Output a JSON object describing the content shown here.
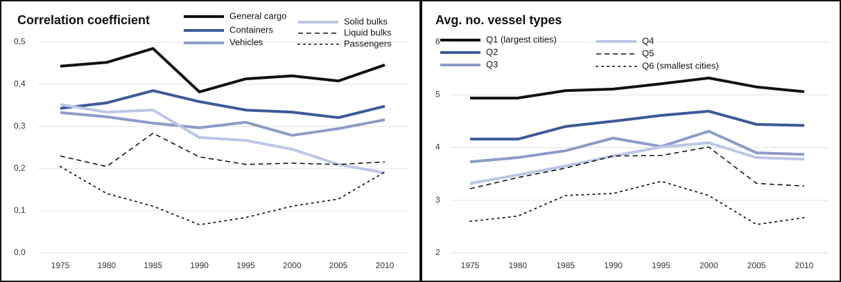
{
  "chart_data": [
    {
      "type": "line",
      "title": "Correlation coefficient",
      "x": [
        1975,
        1980,
        1985,
        1990,
        1995,
        2000,
        2005,
        2010
      ],
      "xlim": [
        1975,
        2010
      ],
      "xticks": [
        1975,
        1980,
        1985,
        1990,
        1995,
        2000,
        2005,
        2010
      ],
      "ylim": [
        0,
        0.5
      ],
      "yticks": [
        {
          "value": 0,
          "label": "0,0"
        },
        {
          "value": 0.1,
          "label": "0,1"
        },
        {
          "value": 0.2,
          "label": "0,2"
        },
        {
          "value": 0.3,
          "label": "0,3"
        },
        {
          "value": 0.4,
          "label": "0,4"
        },
        {
          "value": 0.5,
          "label": "0,5"
        }
      ],
      "grid": true,
      "series": [
        {
          "name": "General cargo",
          "color": "#111111",
          "style": "solid",
          "values": [
            0.443,
            0.452,
            0.485,
            0.382,
            0.413,
            0.42,
            0.408,
            0.446
          ]
        },
        {
          "name": "Containers",
          "color": "#3d5a99",
          "style": "solid",
          "values": [
            0.343,
            0.356,
            0.385,
            0.359,
            0.339,
            0.334,
            0.321,
            0.348
          ]
        },
        {
          "name": "Vehicles",
          "color": "#8c9bc8",
          "style": "solid",
          "values": [
            0.333,
            0.323,
            0.308,
            0.297,
            0.31,
            0.279,
            0.295,
            0.316
          ]
        },
        {
          "name": "Solid bulks",
          "color": "#bcc6e6",
          "style": "solid",
          "values": [
            0.352,
            0.334,
            0.339,
            0.274,
            0.267,
            0.246,
            0.21,
            0.19
          ]
        },
        {
          "name": "Liquid bulks",
          "color": "#111111",
          "style": "dashed",
          "values": [
            0.23,
            0.205,
            0.284,
            0.228,
            0.21,
            0.213,
            0.21,
            0.216
          ]
        },
        {
          "name": "Passengers",
          "color": "#111111",
          "style": "dotted",
          "values": [
            0.205,
            0.141,
            0.111,
            0.067,
            0.084,
            0.111,
            0.128,
            0.192
          ]
        }
      ]
    },
    {
      "type": "line",
      "title": "Avg. no. vessel types",
      "x": [
        1975,
        1980,
        1985,
        1990,
        1995,
        2000,
        2005,
        2010
      ],
      "xlim": [
        1975,
        2010
      ],
      "xticks": [
        1975,
        1980,
        1985,
        1990,
        1995,
        2000,
        2005,
        2010
      ],
      "ylim": [
        2,
        6
      ],
      "yticks": [
        2,
        3,
        4,
        5,
        6
      ],
      "grid": true,
      "series": [
        {
          "name": "Q1 (largest cities)",
          "color": "#111111",
          "style": "solid",
          "values": [
            4.94,
            4.94,
            5.08,
            5.11,
            5.21,
            5.32,
            5.15,
            5.06
          ]
        },
        {
          "name": "Q2",
          "color": "#3d5a99",
          "style": "solid",
          "values": [
            4.16,
            4.16,
            4.4,
            4.5,
            4.61,
            4.69,
            4.44,
            4.42
          ]
        },
        {
          "name": "Q3",
          "color": "#8c9bc8",
          "style": "solid",
          "values": [
            3.73,
            3.81,
            3.94,
            4.18,
            4.02,
            4.31,
            3.9,
            3.87
          ]
        },
        {
          "name": "Q4",
          "color": "#bcc6e6",
          "style": "solid",
          "values": [
            3.32,
            3.48,
            3.65,
            3.84,
            4.01,
            4.09,
            3.81,
            3.78
          ]
        },
        {
          "name": "Q5",
          "color": "#111111",
          "style": "dashed",
          "values": [
            3.22,
            3.43,
            3.61,
            3.84,
            3.85,
            4.01,
            3.32,
            3.27
          ]
        },
        {
          "name": "Q6 (smallest cities)",
          "color": "#111111",
          "style": "dotted",
          "values": [
            2.6,
            2.7,
            3.09,
            3.13,
            3.36,
            3.09,
            2.54,
            2.67
          ]
        }
      ]
    }
  ]
}
